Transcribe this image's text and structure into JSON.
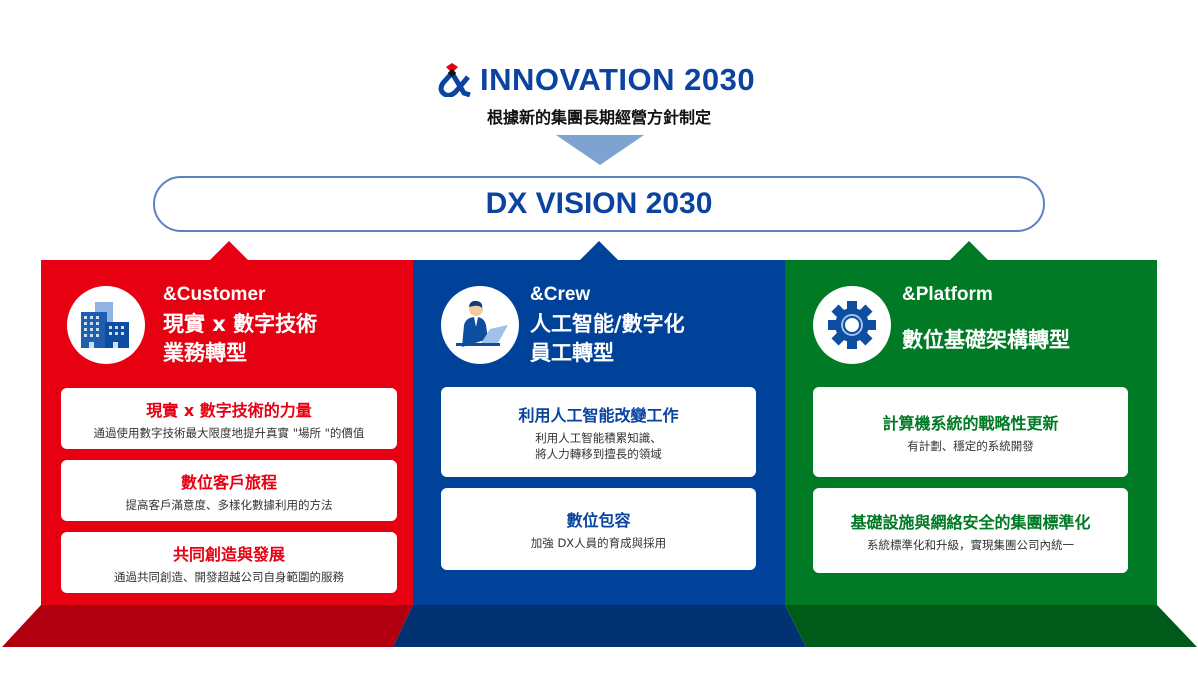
{
  "header": {
    "logo_text": "INNOVATION 2030",
    "subtitle": "根據新的集團長期經營方針制定",
    "vision": "DX VISION 2030"
  },
  "colors": {
    "red": "#e60012",
    "blue": "#00419a",
    "green": "#007a25",
    "red_dark": "#b0000f",
    "blue_dark": "#003272",
    "green_dark": "#005a1a",
    "brand_blue": "#0a44a0"
  },
  "pillars": [
    {
      "tag": "&Customer",
      "title": "現實 x 數字技術\n業務轉型",
      "icon": "building-icon",
      "cards": [
        {
          "heading": "現實 x 數字技術的力量",
          "desc": "通過使用數字技術最大限度地提升真實 \"場所 \"的價值"
        },
        {
          "heading": "數位客戶旅程",
          "desc": "提高客戶滿意度、多樣化數據利用的方法"
        },
        {
          "heading": "共同創造與發展",
          "desc": "通過共同創造、開發超越公司自身範圍的服務"
        }
      ]
    },
    {
      "tag": "&Crew",
      "title": "人工智能/數字化\n員工轉型",
      "icon": "worker-laptop-icon",
      "cards": [
        {
          "heading": "利用人工智能改變工作",
          "desc": "利用人工智能積累知識、\n將人力轉移到擅長的領域"
        },
        {
          "heading": "數位包容",
          "desc": "加強 DX人員的育成與採用"
        }
      ]
    },
    {
      "tag": "&Platform",
      "title": "數位基礎架構轉型",
      "icon": "gear-icon",
      "cards": [
        {
          "heading": "計算機系統的戰略性更新",
          "desc": "有計劃、穩定的系統開發"
        },
        {
          "heading": "基礎設施與網絡安全的集團標準化",
          "desc": "系統標準化和升級，實現集團公司內統一"
        }
      ]
    }
  ]
}
